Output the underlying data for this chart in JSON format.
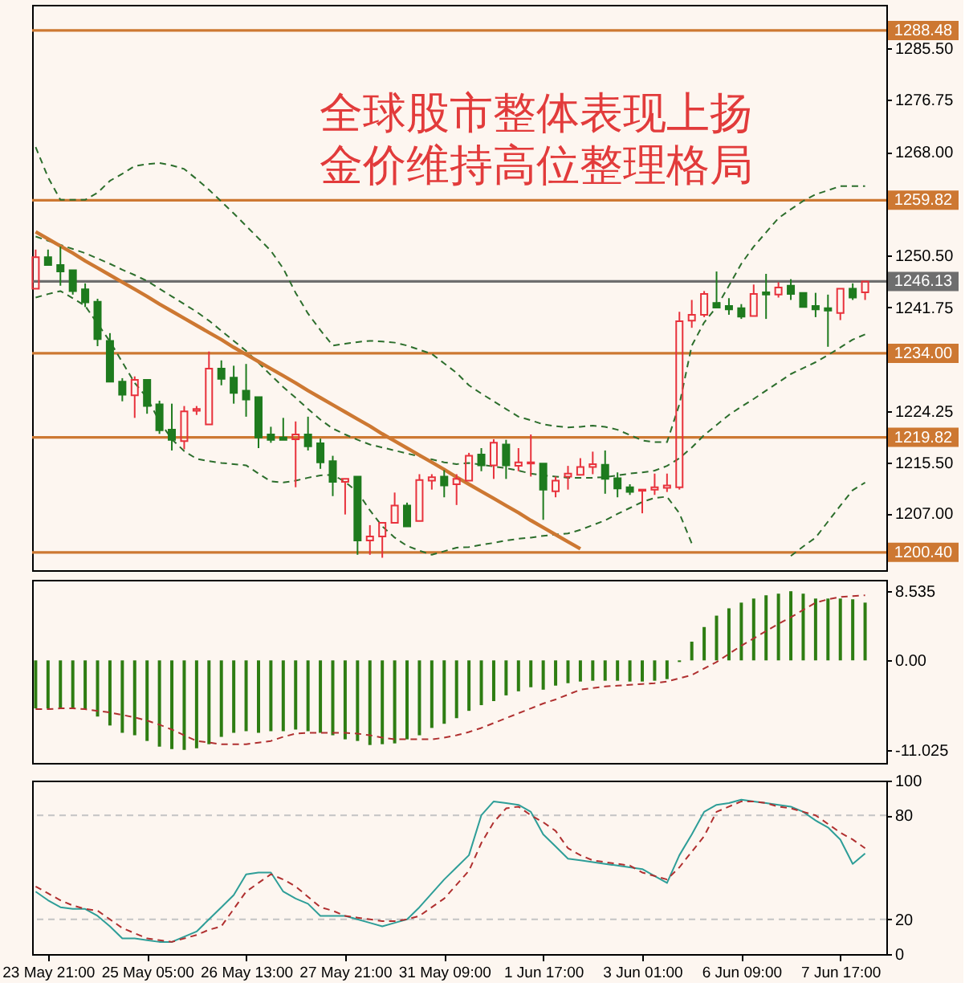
{
  "chart_data": [
    {
      "type": "candlestick",
      "title": "全球股市整体表现上扬",
      "subtitle": "金价维持高位整理格局",
      "categories": [
        null,
        null,
        null,
        null,
        null,
        null,
        null,
        null,
        null,
        null,
        null,
        null,
        null,
        null,
        null,
        null,
        null,
        null,
        null,
        null,
        null,
        null,
        null,
        null,
        null,
        null,
        null,
        null,
        null,
        null,
        null,
        null,
        null,
        null,
        null,
        null,
        null,
        null,
        null,
        null,
        null,
        null,
        null,
        null,
        null,
        null,
        null,
        null,
        null,
        null,
        null,
        null,
        null,
        null,
        null,
        null,
        null,
        null,
        null,
        null,
        null,
        null,
        null,
        null,
        null,
        null,
        null,
        null
      ],
      "ohlc": [
        [
          1244.9,
          1251.5,
          1244.9,
          1250.2
        ],
        [
          1250.2,
          1251.5,
          1248.6,
          1248.9
        ],
        [
          1248.9,
          1252.0,
          1245.4,
          1247.8
        ],
        [
          1248.0,
          1248.3,
          1243.9,
          1244.5
        ],
        [
          1244.8,
          1245.8,
          1241.8,
          1242.6
        ],
        [
          1242.7,
          1243.2,
          1235.2,
          1236.4
        ],
        [
          1236.1,
          1237.4,
          1229.1,
          1229.2
        ],
        [
          1229.2,
          1229.8,
          1225.9,
          1227.0
        ],
        [
          1226.9,
          1230.1,
          1223.1,
          1229.5
        ],
        [
          1229.5,
          1229.8,
          1223.8,
          1225.1
        ],
        [
          1225.4,
          1226.0,
          1220.4,
          1221.0
        ],
        [
          1221.1,
          1225.5,
          1217.6,
          1219.4
        ],
        [
          1219.2,
          1225.1,
          1217.8,
          1224.2
        ],
        [
          1224.3,
          1225.1,
          1223.6,
          1224.6
        ],
        [
          1222.0,
          1234.3,
          1222.0,
          1231.4
        ],
        [
          1231.4,
          1232.8,
          1228.6,
          1229.7
        ],
        [
          1229.9,
          1231.9,
          1225.5,
          1227.3
        ],
        [
          1227.7,
          1232.2,
          1223.3,
          1226.2
        ],
        [
          1226.6,
          1226.9,
          1218.0,
          1219.8
        ],
        [
          1220.3,
          1221.6,
          1218.9,
          1219.4
        ],
        [
          1219.8,
          1223.1,
          1219.2,
          1219.4
        ],
        [
          1219.5,
          1222.5,
          1211.4,
          1220.3
        ],
        [
          1220.3,
          1223.3,
          1217.6,
          1218.3
        ],
        [
          1218.8,
          1219.6,
          1214.5,
          1215.6
        ],
        [
          1215.8,
          1216.7,
          1209.9,
          1212.3
        ],
        [
          1212.3,
          1212.9,
          1206.8,
          1212.8
        ],
        [
          1213.2,
          1213.5,
          1200.0,
          1202.4
        ],
        [
          1202.4,
          1205.0,
          1200.0,
          1203.1
        ],
        [
          1203.1,
          1205.7,
          1199.5,
          1205.4
        ],
        [
          1205.4,
          1210.5,
          1205.3,
          1208.3
        ],
        [
          1208.3,
          1208.8,
          1204.6,
          1204.8
        ],
        [
          1205.7,
          1213.6,
          1205.4,
          1212.6
        ],
        [
          1212.5,
          1213.6,
          1211.0,
          1213.1
        ],
        [
          1213.2,
          1214.3,
          1209.7,
          1211.7
        ],
        [
          1211.9,
          1213.6,
          1208.4,
          1212.8
        ],
        [
          1212.5,
          1217.2,
          1212.3,
          1216.7
        ],
        [
          1216.9,
          1218.0,
          1214.1,
          1215.1
        ],
        [
          1215.1,
          1219.5,
          1212.8,
          1218.9
        ],
        [
          1218.6,
          1219.4,
          1212.8,
          1215.1
        ],
        [
          1215.0,
          1218.0,
          1214.1,
          1215.6
        ],
        [
          1215.4,
          1220.3,
          1213.2,
          1215.6
        ],
        [
          1215.4,
          1215.6,
          1205.9,
          1211.0
        ],
        [
          1210.7,
          1213.2,
          1209.7,
          1212.5
        ],
        [
          1213.2,
          1215.0,
          1211.0,
          1213.7
        ],
        [
          1213.5,
          1216.3,
          1213.2,
          1214.8
        ],
        [
          1214.8,
          1217.4,
          1213.6,
          1215.3
        ],
        [
          1215.2,
          1217.6,
          1210.3,
          1212.8
        ],
        [
          1212.9,
          1213.9,
          1209.7,
          1211.2
        ],
        [
          1211.4,
          1211.9,
          1210.1,
          1210.6
        ],
        [
          1210.8,
          1211.3,
          1207.0,
          1211.0
        ],
        [
          1211.0,
          1213.7,
          1210.1,
          1211.4
        ],
        [
          1211.3,
          1213.7,
          1210.6,
          1211.7
        ],
        [
          1211.4,
          1241.0,
          1211.0,
          1239.4
        ],
        [
          1239.5,
          1243.0,
          1238.3,
          1240.5
        ],
        [
          1240.5,
          1244.5,
          1240.1,
          1244.0
        ],
        [
          1242.5,
          1247.8,
          1241.4,
          1241.7
        ],
        [
          1242.0,
          1243.3,
          1240.5,
          1241.4
        ],
        [
          1241.6,
          1242.3,
          1239.8,
          1240.2
        ],
        [
          1240.3,
          1245.6,
          1240.1,
          1244.0
        ],
        [
          1244.3,
          1247.4,
          1239.8,
          1243.9
        ],
        [
          1243.9,
          1246.0,
          1243.4,
          1245.1
        ],
        [
          1245.4,
          1246.5,
          1243.0,
          1244.0
        ],
        [
          1244.2,
          1244.5,
          1241.7,
          1241.8
        ],
        [
          1242.0,
          1244.2,
          1240.1,
          1241.4
        ],
        [
          1241.6,
          1243.9,
          1235.1,
          1241.2
        ],
        [
          1240.8,
          1245.1,
          1239.6,
          1244.9
        ],
        [
          1244.9,
          1245.8,
          1243.0,
          1243.4
        ],
        [
          1244.3,
          1246.4,
          1243.0,
          1246.13
        ]
      ],
      "colors": [
        "#e8323c",
        "#1e7b1e",
        "#1e7b1e",
        "#1e7b1e",
        "#1e7b1e",
        "#1e7b1e",
        "#1e7b1e",
        "#1e7b1e",
        "#e8323c",
        "#1e7b1e",
        "#1e7b1e",
        "#1e7b1e",
        "#e8323c",
        "#e8323c",
        "#e8323c",
        "#1e7b1e",
        "#1e7b1e",
        "#1e7b1e",
        "#1e7b1e",
        "#1e7b1e",
        "#1e7b1e",
        "#e8323c",
        "#1e7b1e",
        "#1e7b1e",
        "#1e7b1e",
        "#e8323c",
        "#1e7b1e",
        "#e8323c",
        "#e8323c",
        "#e8323c",
        "#1e7b1e",
        "#e8323c",
        "#e8323c",
        "#1e7b1e",
        "#e8323c",
        "#e8323c",
        "#1e7b1e",
        "#e8323c",
        "#1e7b1e",
        "#e8323c",
        "#e8323c",
        "#1e7b1e",
        "#e8323c",
        "#e8323c",
        "#e8323c",
        "#e8323c",
        "#1e7b1e",
        "#1e7b1e",
        "#1e7b1e",
        "#e8323c",
        "#e8323c",
        "#e8323c",
        "#e8323c",
        "#e8323c",
        "#e8323c",
        "#1e7b1e",
        "#1e7b1e",
        "#1e7b1e",
        "#e8323c",
        "#1e7b1e",
        "#e8323c",
        "#1e7b1e",
        "#1e7b1e",
        "#1e7b1e",
        "#1e7b1e",
        "#e8323c",
        "#1e7b1e",
        "#e8323c"
      ],
      "series": [
        {
          "type": "line",
          "color": "#2c6e2c",
          "line_style": "dashed",
          "values": [
            1268.8,
            1263.7,
            1259.9,
            1259.9,
            1259.9,
            1261.1,
            1263.1,
            1264.3,
            1265.6,
            1265.9,
            1266.1,
            1265.7,
            1265.1,
            1263.4,
            1261.6,
            1259.6,
            1257.6,
            1255.5,
            1253.4,
            1251.3,
            1248.3,
            1244.2,
            1240.7,
            1237.9,
            1235.3,
            1235.6,
            1235.9,
            1236.1,
            1236.0,
            1235.8,
            1235.3,
            1234.6,
            1233.9,
            1232.3,
            1230.7,
            1228.6,
            1227.2,
            1225.9,
            1224.6,
            1223.3,
            1222.7,
            1222.0,
            1221.7,
            1221.5,
            1221.6,
            1221.8,
            1221.6,
            1221.1,
            1220.2,
            1219.3,
            1219.0,
            1219.0,
            1225.4,
            1235.3,
            1239.2,
            1241.8,
            1245.4,
            1249.1,
            1252.0,
            1254.4,
            1256.8,
            1258.3,
            1259.7,
            1260.8,
            1261.5,
            1262.2,
            1262.2,
            1262.2
          ]
        },
        {
          "type": "line",
          "color": "#2c6e2c",
          "line_style": "dashed",
          "values": [
            1253.7,
            1253.0,
            1252.3,
            1251.6,
            1250.9,
            1250.0,
            1249.1,
            1248.1,
            1247.2,
            1246.2,
            1244.9,
            1243.6,
            1242.3,
            1241.0,
            1239.5,
            1237.8,
            1236.1,
            1234.4,
            1232.4,
            1230.3,
            1228.3,
            1226.5,
            1224.6,
            1222.8,
            1221.3,
            1220.3,
            1219.4,
            1218.6,
            1218.1,
            1217.6,
            1217.1,
            1216.6,
            1216.1,
            1215.6,
            1215.3,
            1215.5,
            1215.2,
            1214.9,
            1214.6,
            1214.2,
            1213.7,
            1213.4,
            1213.2,
            1213.0,
            1213.0,
            1213.0,
            1213.1,
            1213.4,
            1213.7,
            1213.9,
            1214.2,
            1215.0,
            1216.3,
            1218.1,
            1220.2,
            1221.9,
            1223.6,
            1225.0,
            1226.3,
            1227.7,
            1229.1,
            1230.5,
            1231.5,
            1232.5,
            1233.7,
            1235.0,
            1236.3,
            1237.2
          ]
        },
        {
          "type": "line",
          "color": "#2c6e2c",
          "line_style": "dashed",
          "values": [
            1243.4,
            1244.0,
            1244.5,
            1243.3,
            1242.0,
            1239.0,
            1236.0,
            1232.5,
            1229.0,
            1226.5,
            1222.5,
            1219.5,
            1217.5,
            1216.2,
            1215.8,
            1215.5,
            1215.3,
            1215.1,
            1213.7,
            1212.4,
            1212.2,
            1212.5,
            1213.0,
            1213.4,
            1213.5,
            1212.3,
            1210.6,
            1207.5,
            1204.8,
            1202.9,
            1201.5,
            1200.7,
            1200.0,
            1200.6,
            1201.2,
            1201.3,
            1201.7,
            1202.0,
            1202.4,
            1202.7,
            1202.9,
            1203.2,
            1203.4,
            1203.6,
            1204.2,
            1205.0,
            1205.8,
            1206.9,
            1207.9,
            1208.9,
            1209.6,
            1209.8,
            1207.0,
            1201.9,
            null,
            null,
            null,
            null,
            null,
            null,
            null,
            1199.8,
            1201.4,
            1202.9,
            1205.6,
            1208.3,
            1210.9,
            1212.2
          ]
        },
        {
          "type": "line",
          "color": "#cd7832",
          "values": [
            1254.5,
            1253.3,
            1252.1,
            1250.9,
            1249.6,
            1248.4,
            1247.2,
            1246.0,
            1244.8,
            1243.6,
            1242.3,
            1241.1,
            1239.9,
            1238.7,
            1237.5,
            1236.3,
            1235.0,
            1233.8,
            1232.6,
            1231.4,
            1230.2,
            1229.0,
            1227.7,
            1226.5,
            1225.3,
            1224.1,
            1222.9,
            1221.7,
            1220.4,
            1219.2,
            1218.0,
            1216.8,
            1215.6,
            1214.4,
            1213.1,
            1211.9,
            1210.7,
            1209.5,
            1208.3,
            1207.1,
            1205.8,
            1204.6,
            1203.4,
            1202.2,
            1201.0,
            null,
            null,
            null,
            null,
            null,
            null,
            null,
            null,
            null,
            null,
            null,
            null,
            null,
            null,
            null,
            null,
            null,
            null,
            null,
            null,
            null,
            null,
            null
          ]
        }
      ],
      "ylim": [
        1197.4,
        1292.8
      ],
      "yticks": [
        {
          "value": 1207,
          "label": "1207.00"
        },
        {
          "value": 1215.5,
          "label": "1215.50"
        },
        1224.25,
        1241.75,
        {
          "value": 1250.5,
          "label": "1250.50"
        },
        {
          "value": 1268,
          "label": "1268.00"
        },
        1276.75,
        {
          "value": 1285.5,
          "label": "1285.50"
        }
      ],
      "ref_lines": [
        {
          "axis": "y",
          "value": 1288.48,
          "label": "1288.48",
          "color": "#cd7832"
        },
        {
          "axis": "y",
          "value": 1259.82,
          "label": "1259.82",
          "color": "#cd7832"
        },
        {
          "axis": "y",
          "value": 1246.13,
          "label": "1246.13",
          "color": "#6e6e6e"
        },
        {
          "axis": "y",
          "value": 1234.0,
          "label": "1234.00",
          "color": "#cd7832"
        },
        {
          "axis": "y",
          "value": 1219.82,
          "label": "1219.82",
          "color": "#cd7832"
        },
        {
          "axis": "y",
          "value": 1200.4,
          "label": "1200.40",
          "color": "#cd7832"
        }
      ],
      "tick_labels": "y"
    },
    {
      "type": "bar",
      "categories": [
        null,
        null,
        null,
        null,
        null,
        null,
        null,
        null,
        null,
        null,
        null,
        null,
        null,
        null,
        null,
        null,
        null,
        null,
        null,
        null,
        null,
        null,
        null,
        null,
        null,
        null,
        null,
        null,
        null,
        null,
        null,
        null,
        null,
        null,
        null,
        null,
        null,
        null,
        null,
        null,
        null,
        null,
        null,
        null,
        null,
        null,
        null,
        null,
        null,
        null,
        null,
        null,
        null,
        null,
        null,
        null,
        null,
        null,
        null,
        null,
        null,
        null,
        null,
        null,
        null,
        null,
        null,
        null
      ],
      "series": [
        {
          "color": "#2e7d12",
          "values": [
            -5.9,
            -5.9,
            -5.9,
            -5.9,
            -6.0,
            -6.9,
            -8.0,
            -8.9,
            -9.2,
            -9.9,
            -10.6,
            -10.9,
            -11.0,
            -10.8,
            -10.3,
            -9.4,
            -8.9,
            -8.7,
            -8.9,
            -8.7,
            -8.7,
            -8.5,
            -8.7,
            -8.9,
            -9.2,
            -9.7,
            -9.9,
            -10.4,
            -10.3,
            -10.2,
            -9.7,
            -9.2,
            -8.3,
            -7.8,
            -7.1,
            -6.2,
            -5.5,
            -5.0,
            -4.3,
            -3.8,
            -3.3,
            -3.6,
            -3.1,
            -2.8,
            -2.6,
            -2.5,
            -2.5,
            -2.5,
            -2.6,
            -2.6,
            -2.5,
            -2.3,
            -0.2,
            2.3,
            4.1,
            5.5,
            6.4,
            7.1,
            7.6,
            8.0,
            8.2,
            8.5,
            8.2,
            7.6,
            7.6,
            7.6,
            7.5,
            7.1
          ]
        },
        {
          "type": "line",
          "color": "#b03030",
          "line_style": "dashed",
          "values": [
            -6.0,
            -6.0,
            -5.9,
            -5.9,
            -6.0,
            -6.2,
            -6.4,
            -6.7,
            -7.0,
            -7.4,
            -7.9,
            -8.5,
            -9.2,
            -9.9,
            -10.1,
            -10.3,
            -10.3,
            -10.3,
            -10.1,
            -9.9,
            -9.4,
            -9.0,
            -8.9,
            -8.9,
            -8.9,
            -8.9,
            -9.0,
            -9.2,
            -9.5,
            -9.7,
            -9.7,
            -9.7,
            -9.7,
            -9.5,
            -9.2,
            -8.8,
            -8.3,
            -7.7,
            -7.1,
            -6.5,
            -5.9,
            -5.3,
            -4.8,
            -4.2,
            -3.6,
            -3.4,
            -3.2,
            -3.1,
            -3.0,
            -2.9,
            -2.8,
            -2.6,
            -2.2,
            -1.8,
            -1.0,
            -0.2,
            0.8,
            1.8,
            2.7,
            3.6,
            4.5,
            5.3,
            6.2,
            7.1,
            7.5,
            7.8,
            7.9,
            8.0
          ]
        }
      ],
      "ylim": [
        -12.6,
        9.9
      ],
      "yticks": [
        8.535,
        {
          "value": 0,
          "label": "0.00"
        },
        -11.025
      ],
      "tick_labels": "y"
    },
    {
      "type": "line",
      "categories": [
        null,
        "23 May 21:00",
        null,
        null,
        null,
        null,
        null,
        null,
        null,
        "25 May 05:00",
        null,
        null,
        null,
        null,
        null,
        null,
        null,
        "26 May 13:00",
        null,
        null,
        null,
        null,
        null,
        null,
        null,
        "27 May 21:00",
        null,
        null,
        null,
        null,
        null,
        null,
        null,
        "31 May 09:00",
        null,
        null,
        null,
        null,
        null,
        null,
        null,
        "1 Jun 17:00",
        null,
        null,
        null,
        null,
        null,
        null,
        null,
        "3 Jun 01:00",
        null,
        null,
        null,
        null,
        null,
        null,
        null,
        "6 Jun 09:00",
        null,
        null,
        null,
        null,
        null,
        null,
        null,
        "7 Jun 17:00",
        null,
        null
      ],
      "series": [
        {
          "color": "#2e9e98",
          "values": [
            36,
            31,
            27,
            26,
            26,
            22,
            16,
            9,
            9,
            8,
            7,
            7,
            10,
            13,
            20,
            27,
            34,
            46,
            47,
            47,
            36,
            32,
            29,
            22,
            22,
            22,
            20,
            18,
            16,
            18,
            20,
            27,
            35,
            43,
            50,
            57,
            80,
            88,
            87,
            86,
            82,
            69,
            62,
            55,
            54,
            53,
            52,
            51,
            50,
            49,
            45,
            41,
            57,
            69,
            82,
            86,
            87,
            89,
            88,
            87,
            86,
            85,
            82,
            77,
            73,
            66,
            52,
            58
          ]
        },
        {
          "color": "#b03030",
          "line_style": "dashed",
          "values": [
            39,
            35,
            31,
            28,
            26,
            25,
            20,
            15,
            12,
            9,
            8,
            7,
            9,
            11,
            14,
            16,
            26,
            36,
            41,
            46,
            43,
            39,
            33,
            27,
            25,
            22,
            21,
            20,
            19,
            19,
            20,
            22,
            27,
            32,
            40,
            48,
            64,
            76,
            84,
            85,
            80,
            76,
            71,
            61,
            57,
            54,
            53,
            52,
            51,
            47,
            45,
            43,
            50,
            59,
            68,
            82,
            85,
            88,
            88,
            87,
            85,
            84,
            82,
            80,
            75,
            70,
            66,
            61
          ]
        }
      ],
      "ylim": [
        0,
        100
      ],
      "yticks": [
        0,
        20,
        80,
        100
      ],
      "ref_lines": [
        {
          "axis": "y",
          "value": 20,
          "color": "#c4c4c4",
          "line_style": "dashed"
        },
        {
          "axis": "y",
          "value": 80,
          "color": "#c4c4c4",
          "line_style": "dashed"
        }
      ]
    }
  ]
}
